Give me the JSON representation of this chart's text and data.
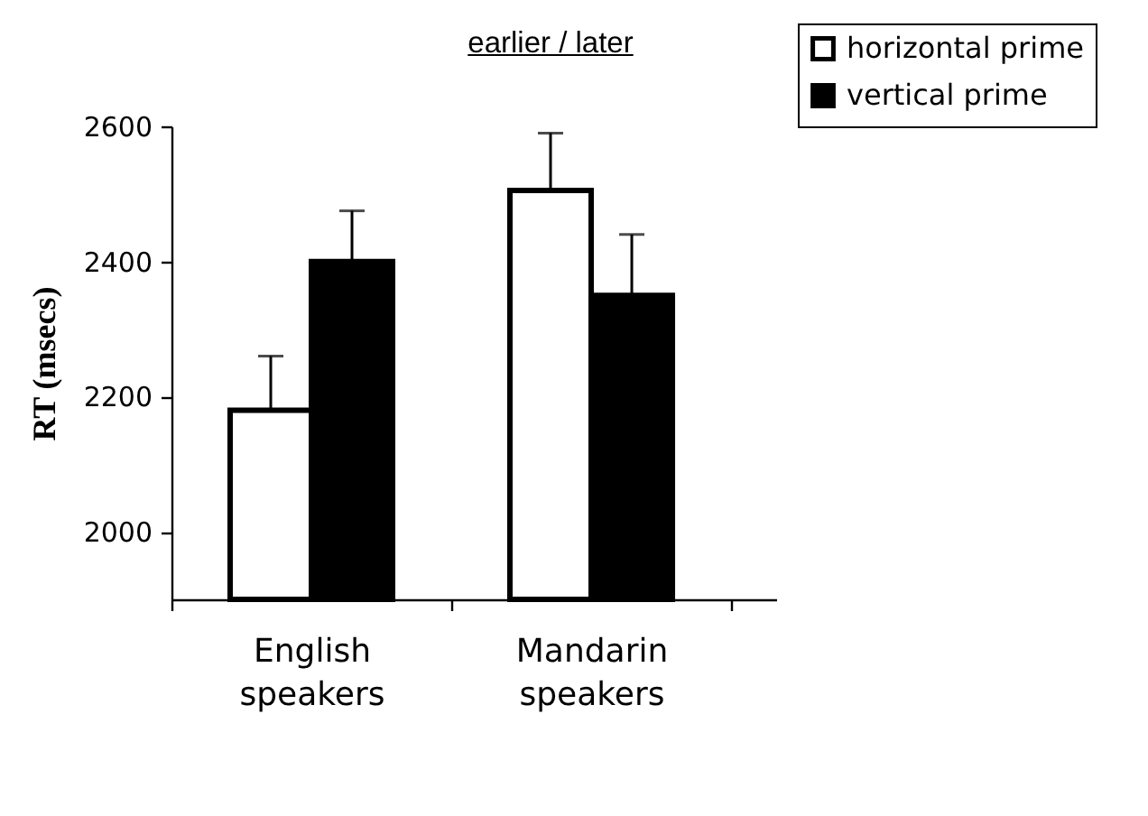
{
  "chart_data": {
    "type": "bar",
    "title": "earlier / later",
    "ylabel": "RT (msecs)",
    "categories": [
      "English speakers",
      "Mandarin speakers"
    ],
    "series": [
      {
        "name": "horizontal prime",
        "color": "#ffffff",
        "values": [
          2180,
          2505
        ],
        "errors": [
          [
            2180,
            2260
          ],
          [
            2505,
            2590
          ]
        ]
      },
      {
        "name": "vertical prime",
        "color": "#000000",
        "values": [
          2400,
          2350
        ],
        "errors": [
          [
            2400,
            2475
          ],
          [
            2350,
            2440
          ]
        ]
      }
    ],
    "ylim": [
      1900,
      2600
    ],
    "yticks": [
      2000,
      2200,
      2400,
      2600
    ],
    "legend": "top right"
  }
}
